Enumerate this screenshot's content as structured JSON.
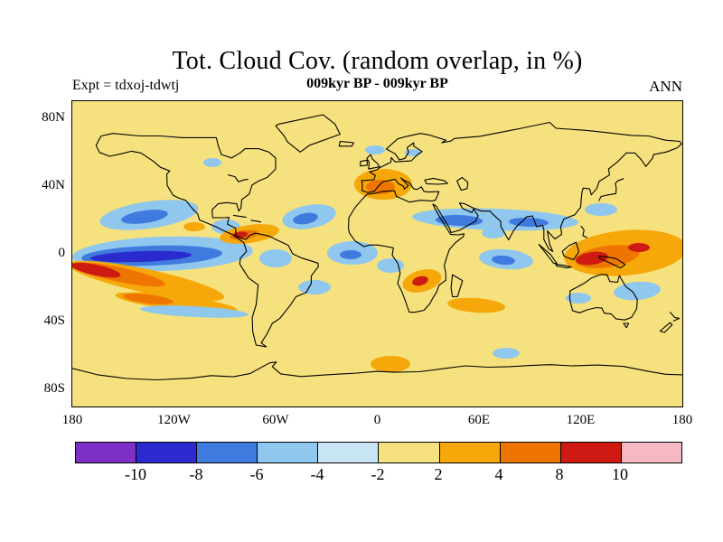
{
  "header": {
    "title": "Tot. Cloud Cov. (random overlap, in %)",
    "subtitle": "009kyr BP - 009kyr BP",
    "experiment": "Expt = tdxoj-tdwtj",
    "season": "ANN"
  },
  "chart_data": {
    "type": "heatmap",
    "variable": "Total cloud cover difference (random overlap), in percent",
    "title": "Tot. Cloud Cov. (random overlap, in %)",
    "subtitle": "009kyr BP - 009kyr BP",
    "experiment": "tdxoj-tdwtj",
    "season": "ANN",
    "projection": "equirectangular world map",
    "lon_range": [
      -180,
      180
    ],
    "lat_range": [
      -90,
      90
    ],
    "y_ticks": [
      {
        "label": "80N",
        "lat": 80
      },
      {
        "label": "40N",
        "lat": 40
      },
      {
        "label": "0",
        "lat": 0
      },
      {
        "label": "40S",
        "lat": -40
      },
      {
        "label": "80S",
        "lat": -80
      }
    ],
    "x_ticks": [
      {
        "label": "180",
        "lon": -180
      },
      {
        "label": "120W",
        "lon": -120
      },
      {
        "label": "60W",
        "lon": -60
      },
      {
        "label": "0",
        "lon": 0
      },
      {
        "label": "60E",
        "lon": 60
      },
      {
        "label": "120E",
        "lon": 120
      },
      {
        "label": "180",
        "lon": 180
      }
    ],
    "colorbar": {
      "levels": [
        -10,
        -8,
        -6,
        -4,
        -2,
        2,
        4,
        8,
        10
      ],
      "tick_labels": [
        "-10",
        "-8",
        "-6",
        "-4",
        "-2",
        "2",
        "4",
        "8",
        "10"
      ],
      "segment_colors": [
        "#7D2FC6",
        "#2A2ACF",
        "#3F7BDE",
        "#8FC7EF",
        "#C9E6F6",
        "#F5E27E",
        "#F6A70A",
        "#EE7600",
        "#CE1A12",
        "#F6B9C4"
      ]
    },
    "palette": {
      "purple": "#7D2FC6",
      "blue_dark": "#2A2ACF",
      "blue_med": "#3F7BDE",
      "blue_light": "#8FC7EF",
      "blue_pale": "#C9E6F6",
      "yellow": "#F5E27E",
      "orange": "#F6A70A",
      "orange_dark": "#EE7600",
      "red": "#CE1A12",
      "pink": "#F6B9C4"
    },
    "anomalies": [
      {
        "region": "equatorial eastern-central Pacific",
        "sign": "negative",
        "peak_value": "-8 to -10 %"
      },
      {
        "region": "southeast subtropical Pacific",
        "sign": "positive",
        "peak_value": "+8 to +10 %"
      },
      {
        "region": "North Pacific mid-latitudes",
        "sign": "negative",
        "peak_value": "-4 %"
      },
      {
        "region": "Caribbean / northern South America",
        "sign": "positive",
        "peak_value": "+8 %"
      },
      {
        "region": "North Atlantic",
        "sign": "negative",
        "peak_value": "-4 %"
      },
      {
        "region": "Mediterranean / North Africa",
        "sign": "positive",
        "peak_value": "+4 to +8 %"
      },
      {
        "region": "central Asia zonal band",
        "sign": "negative",
        "peak_value": "-4 %"
      },
      {
        "region": "East Africa",
        "sign": "positive",
        "peak_value": "+8 %"
      },
      {
        "region": "tropical Indian Ocean",
        "sign": "negative",
        "peak_value": "-4 %"
      },
      {
        "region": "Maritime Continent / western Pacific",
        "sign": "positive",
        "peak_value": "+10 %"
      },
      {
        "region": "Tasman Sea / SE of Australia",
        "sign": "negative",
        "peak_value": "-2 to -4 %"
      },
      {
        "region": "Southern Ocean south of Africa",
        "sign": "positive",
        "peak_value": "+4 %"
      }
    ],
    "render_blobs": [
      {
        "c": "blue_light",
        "cx": 85,
        "cy": 126,
        "rx": 55,
        "ry": 15,
        "rot": -8
      },
      {
        "c": "blue_med",
        "cx": 80,
        "cy": 128,
        "rx": 26,
        "ry": 7,
        "rot": -8
      },
      {
        "c": "blue_light",
        "cx": 170,
        "cy": 139,
        "rx": 16,
        "ry": 8,
        "rot": 0
      },
      {
        "c": "blue_light",
        "cx": 155,
        "cy": 68,
        "rx": 10,
        "ry": 5,
        "rot": 0
      },
      {
        "c": "blue_light",
        "cx": 100,
        "cy": 169,
        "rx": 100,
        "ry": 19,
        "rot": -2
      },
      {
        "c": "blue_med",
        "cx": 88,
        "cy": 171,
        "rx": 78,
        "ry": 11,
        "rot": -2
      },
      {
        "c": "blue_dark",
        "cx": 76,
        "cy": 172,
        "rx": 56,
        "ry": 6,
        "rot": -2
      },
      {
        "c": "blue_light",
        "cx": 225,
        "cy": 174,
        "rx": 18,
        "ry": 10,
        "rot": 0
      },
      {
        "c": "orange",
        "cx": 82,
        "cy": 199,
        "rx": 88,
        "ry": 13,
        "rot": 12
      },
      {
        "c": "orange_dark",
        "cx": 52,
        "cy": 192,
        "rx": 52,
        "ry": 8,
        "rot": 12
      },
      {
        "c": "red",
        "cx": 26,
        "cy": 187,
        "rx": 28,
        "ry": 6,
        "rot": 12
      },
      {
        "c": "orange",
        "cx": 115,
        "cy": 223,
        "rx": 68,
        "ry": 8,
        "rot": 7
      },
      {
        "c": "orange_dark",
        "cx": 84,
        "cy": 219,
        "rx": 28,
        "ry": 5,
        "rot": 7
      },
      {
        "c": "blue_light",
        "cx": 135,
        "cy": 233,
        "rx": 60,
        "ry": 6,
        "rot": 3
      },
      {
        "c": "orange",
        "cx": 135,
        "cy": 139,
        "rx": 12,
        "ry": 5,
        "rot": 0
      },
      {
        "c": "orange",
        "cx": 196,
        "cy": 147,
        "rx": 33,
        "ry": 10,
        "rot": -8
      },
      {
        "c": "orange_dark",
        "cx": 190,
        "cy": 148,
        "rx": 16,
        "ry": 5,
        "rot": -8
      },
      {
        "c": "red",
        "cx": 186,
        "cy": 148,
        "rx": 8,
        "ry": 3.5,
        "rot": -8
      },
      {
        "c": "blue_light",
        "cx": 262,
        "cy": 128,
        "rx": 30,
        "ry": 13,
        "rot": -10
      },
      {
        "c": "blue_med",
        "cx": 258,
        "cy": 130,
        "rx": 14,
        "ry": 6,
        "rot": -10
      },
      {
        "c": "blue_light",
        "cx": 310,
        "cy": 168,
        "rx": 28,
        "ry": 13,
        "rot": 0
      },
      {
        "c": "blue_med",
        "cx": 308,
        "cy": 170,
        "rx": 12,
        "ry": 5,
        "rot": 0
      },
      {
        "c": "blue_light",
        "cx": 268,
        "cy": 206,
        "rx": 18,
        "ry": 8,
        "rot": 0
      },
      {
        "c": "blue_light",
        "cx": 352,
        "cy": 182,
        "rx": 15,
        "ry": 8,
        "rot": 0
      },
      {
        "c": "blue_light",
        "cx": 335,
        "cy": 54,
        "rx": 11,
        "ry": 5,
        "rot": 0
      },
      {
        "c": "blue_light",
        "cx": 377,
        "cy": 57,
        "rx": 9,
        "ry": 4,
        "rot": 0
      },
      {
        "c": "orange",
        "cx": 344,
        "cy": 92,
        "rx": 32,
        "ry": 17,
        "rot": 0
      },
      {
        "c": "orange_dark",
        "cx": 341,
        "cy": 95,
        "rx": 16,
        "ry": 8,
        "rot": 0
      },
      {
        "c": "blue_light",
        "cx": 468,
        "cy": 131,
        "rx": 92,
        "ry": 12,
        "rot": 2
      },
      {
        "c": "blue_med",
        "cx": 428,
        "cy": 132,
        "rx": 26,
        "ry": 6,
        "rot": 2
      },
      {
        "c": "blue_med",
        "cx": 505,
        "cy": 134,
        "rx": 22,
        "ry": 5,
        "rot": 2
      },
      {
        "c": "blue_light",
        "cx": 585,
        "cy": 120,
        "rx": 18,
        "ry": 7,
        "rot": 0
      },
      {
        "c": "blue_light",
        "cx": 466,
        "cy": 146,
        "rx": 13,
        "ry": 6,
        "rot": 0
      },
      {
        "c": "blue_light",
        "cx": 480,
        "cy": 175,
        "rx": 30,
        "ry": 11,
        "rot": 5
      },
      {
        "c": "blue_med",
        "cx": 477,
        "cy": 176,
        "rx": 13,
        "ry": 5,
        "rot": 5
      },
      {
        "c": "orange",
        "cx": 387,
        "cy": 199,
        "rx": 22,
        "ry": 12,
        "rot": -15
      },
      {
        "c": "red",
        "cx": 385,
        "cy": 199,
        "rx": 9,
        "ry": 5,
        "rot": -15
      },
      {
        "c": "orange",
        "cx": 447,
        "cy": 226,
        "rx": 32,
        "ry": 8,
        "rot": 4
      },
      {
        "c": "orange",
        "cx": 612,
        "cy": 168,
        "rx": 68,
        "ry": 25,
        "rot": -5
      },
      {
        "c": "orange_dark",
        "cx": 592,
        "cy": 172,
        "rx": 36,
        "ry": 12,
        "rot": -8
      },
      {
        "c": "red",
        "cx": 575,
        "cy": 174,
        "rx": 18,
        "ry": 7,
        "rot": -8
      },
      {
        "c": "red",
        "cx": 627,
        "cy": 162,
        "rx": 12,
        "ry": 5,
        "rot": 0
      },
      {
        "c": "blue_light",
        "cx": 625,
        "cy": 210,
        "rx": 26,
        "ry": 10,
        "rot": -5
      },
      {
        "c": "blue_light",
        "cx": 560,
        "cy": 218,
        "rx": 14,
        "ry": 6,
        "rot": 0
      },
      {
        "c": "orange",
        "cx": 352,
        "cy": 291,
        "rx": 22,
        "ry": 9,
        "rot": 0
      },
      {
        "c": "blue_light",
        "cx": 480,
        "cy": 279,
        "rx": 15,
        "ry": 6,
        "rot": 0
      }
    ]
  }
}
